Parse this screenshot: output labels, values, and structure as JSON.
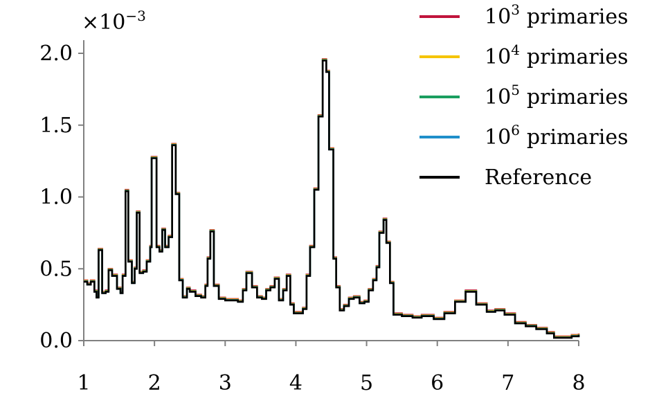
{
  "chart_data": {
    "type": "line",
    "title": "",
    "xlabel": "",
    "ylabel": "",
    "y_scale_label": "×10",
    "y_scale_exponent": "−3",
    "xlim": [
      1,
      8
    ],
    "ylim": [
      0,
      2.0
    ],
    "x_ticks": [
      "1",
      "2",
      "3",
      "4",
      "5",
      "6",
      "7",
      "8"
    ],
    "y_ticks": [
      "0.0",
      "0.5",
      "1.0",
      "1.5",
      "2.0"
    ],
    "grid": false,
    "legend_position": "top-right",
    "step_curve": true,
    "series": [
      {
        "name": "primaries",
        "power_base": "10",
        "power_exp": "3",
        "color": "#c0143c"
      },
      {
        "name": "primaries",
        "power_base": "10",
        "power_exp": "4",
        "color": "#f5c400"
      },
      {
        "name": "primaries",
        "power_base": "10",
        "power_exp": "5",
        "color": "#1a9e5f"
      },
      {
        "name": "primaries",
        "power_base": "10",
        "power_exp": "6",
        "color": "#1f8fca"
      },
      {
        "name": "Reference",
        "color": "#000000"
      }
    ],
    "reference_points": [
      [
        1.0,
        0.41
      ],
      [
        1.05,
        0.39
      ],
      [
        1.1,
        0.41
      ],
      [
        1.15,
        0.34
      ],
      [
        1.18,
        0.3
      ],
      [
        1.21,
        0.63
      ],
      [
        1.26,
        0.33
      ],
      [
        1.31,
        0.34
      ],
      [
        1.35,
        0.49
      ],
      [
        1.4,
        0.45
      ],
      [
        1.47,
        0.36
      ],
      [
        1.52,
        0.33
      ],
      [
        1.55,
        0.45
      ],
      [
        1.59,
        1.04
      ],
      [
        1.63,
        0.55
      ],
      [
        1.68,
        0.4
      ],
      [
        1.72,
        0.5
      ],
      [
        1.75,
        0.89
      ],
      [
        1.79,
        0.47
      ],
      [
        1.84,
        0.48
      ],
      [
        1.89,
        0.55
      ],
      [
        1.94,
        0.65
      ],
      [
        1.96,
        1.27
      ],
      [
        2.03,
        0.65
      ],
      [
        2.07,
        0.62
      ],
      [
        2.11,
        0.77
      ],
      [
        2.15,
        0.65
      ],
      [
        2.2,
        0.72
      ],
      [
        2.25,
        1.36
      ],
      [
        2.3,
        1.02
      ],
      [
        2.35,
        0.42
      ],
      [
        2.4,
        0.3
      ],
      [
        2.46,
        0.36
      ],
      [
        2.5,
        0.34
      ],
      [
        2.58,
        0.31
      ],
      [
        2.66,
        0.3
      ],
      [
        2.72,
        0.38
      ],
      [
        2.75,
        0.57
      ],
      [
        2.79,
        0.76
      ],
      [
        2.84,
        0.38
      ],
      [
        2.91,
        0.29
      ],
      [
        3.0,
        0.28
      ],
      [
        3.1,
        0.28
      ],
      [
        3.18,
        0.27
      ],
      [
        3.25,
        0.35
      ],
      [
        3.3,
        0.47
      ],
      [
        3.38,
        0.37
      ],
      [
        3.45,
        0.3
      ],
      [
        3.52,
        0.29
      ],
      [
        3.58,
        0.35
      ],
      [
        3.64,
        0.37
      ],
      [
        3.7,
        0.43
      ],
      [
        3.76,
        0.28
      ],
      [
        3.82,
        0.35
      ],
      [
        3.87,
        0.45
      ],
      [
        3.92,
        0.25
      ],
      [
        3.97,
        0.19
      ],
      [
        4.05,
        0.19
      ],
      [
        4.1,
        0.22
      ],
      [
        4.15,
        0.45
      ],
      [
        4.2,
        0.65
      ],
      [
        4.26,
        1.05
      ],
      [
        4.32,
        1.56
      ],
      [
        4.38,
        1.95
      ],
      [
        4.43,
        1.87
      ],
      [
        4.47,
        1.33
      ],
      [
        4.53,
        0.57
      ],
      [
        4.57,
        0.37
      ],
      [
        4.62,
        0.21
      ],
      [
        4.68,
        0.24
      ],
      [
        4.75,
        0.29
      ],
      [
        4.82,
        0.3
      ],
      [
        4.9,
        0.26
      ],
      [
        4.97,
        0.27
      ],
      [
        5.03,
        0.35
      ],
      [
        5.09,
        0.42
      ],
      [
        5.14,
        0.51
      ],
      [
        5.18,
        0.75
      ],
      [
        5.24,
        0.84
      ],
      [
        5.28,
        0.68
      ],
      [
        5.33,
        0.4
      ],
      [
        5.38,
        0.18
      ],
      [
        5.5,
        0.17
      ],
      [
        5.65,
        0.16
      ],
      [
        5.78,
        0.17
      ],
      [
        5.95,
        0.15
      ],
      [
        6.1,
        0.19
      ],
      [
        6.25,
        0.27
      ],
      [
        6.4,
        0.34
      ],
      [
        6.55,
        0.25
      ],
      [
        6.7,
        0.2
      ],
      [
        6.82,
        0.21
      ],
      [
        6.95,
        0.18
      ],
      [
        7.1,
        0.12
      ],
      [
        7.25,
        0.1
      ],
      [
        7.4,
        0.08
      ],
      [
        7.55,
        0.05
      ],
      [
        7.65,
        0.02
      ],
      [
        7.78,
        0.02
      ],
      [
        7.9,
        0.03
      ],
      [
        8.0,
        0.04
      ]
    ]
  }
}
